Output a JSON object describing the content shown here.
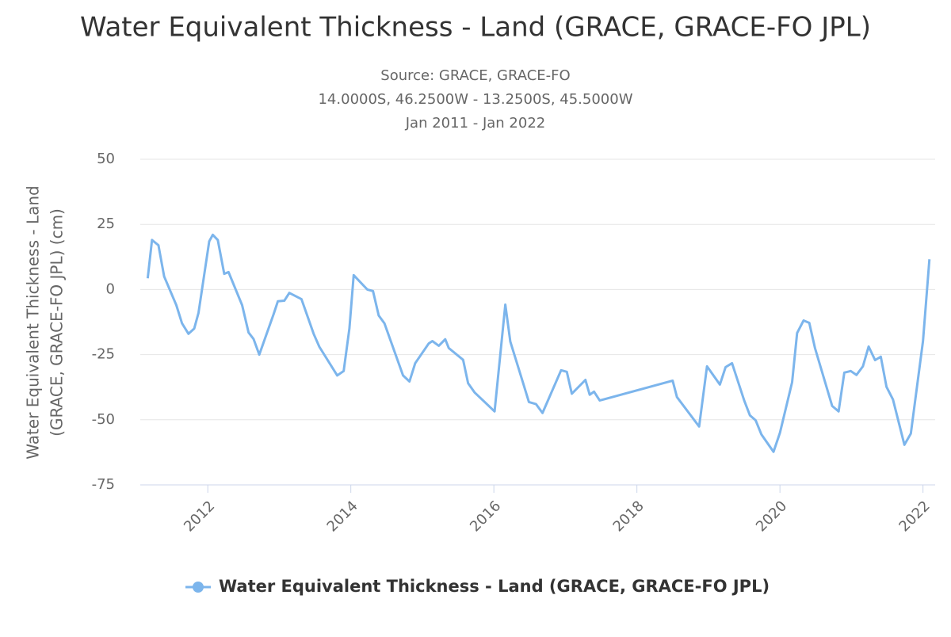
{
  "chart_data": {
    "type": "line",
    "title": "Water Equivalent Thickness - Land (GRACE, GRACE-FO JPL)",
    "subtitle": [
      "Source: GRACE, GRACE-FO",
      "14.0000S, 46.2500W - 13.2500S, 45.5000W",
      "Jan 2011 - Jan 2022"
    ],
    "y_label": [
      "Water Equivalent Thickness - Land",
      "(GRACE, GRACE-FO JPL) (cm)"
    ],
    "xlim": [
      2011.056,
      2022.17
    ],
    "xticks": [
      2012,
      2014,
      2016,
      2018,
      2020,
      2022
    ],
    "ylim": [
      -75,
      50
    ],
    "yticks": [
      -75,
      -50,
      -25,
      0,
      25,
      50
    ],
    "grid": true,
    "x": [
      2011.16,
      2011.22,
      2011.31,
      2011.39,
      2011.56,
      2011.64,
      2011.73,
      2011.81,
      2011.87,
      2012.02,
      2012.07,
      2012.14,
      2012.23,
      2012.29,
      2012.48,
      2012.57,
      2012.64,
      2012.72,
      2012.81,
      2012.92,
      2012.98,
      2013.07,
      2013.14,
      2013.31,
      2013.48,
      2013.56,
      2013.81,
      2013.9,
      2013.98,
      2014.04,
      2014.23,
      2014.31,
      2014.39,
      2014.47,
      2014.73,
      2014.82,
      2014.9,
      2015.09,
      2015.14,
      2015.23,
      2015.32,
      2015.37,
      2015.57,
      2015.64,
      2015.73,
      2016.01,
      2016.16,
      2016.23,
      2016.41,
      2016.49,
      2016.59,
      2016.68,
      2016.94,
      2017.02,
      2017.09,
      2017.28,
      2017.34,
      2017.4,
      2017.48,
      2018.5,
      2018.56,
      2018.87,
      2018.98,
      2019.16,
      2019.24,
      2019.33,
      2019.5,
      2019.58,
      2019.66,
      2019.74,
      2019.91,
      2020.0,
      2020.17,
      2020.24,
      2020.33,
      2020.41,
      2020.49,
      2020.73,
      2020.82,
      2020.9,
      2020.99,
      2021.07,
      2021.16,
      2021.24,
      2021.33,
      2021.41,
      2021.49,
      2021.58,
      2021.74,
      2021.83,
      2022.0,
      2022.09
    ],
    "series": [
      {
        "name": "Water Equivalent Thickness - Land (GRACE, GRACE-FO JPL)",
        "color": "#7cb5ec",
        "values": [
          4.3,
          19,
          17,
          5,
          -6,
          -13,
          -17,
          -15,
          -9,
          18.5,
          21,
          19,
          6,
          6.7,
          -6,
          -16.5,
          -19,
          -25,
          -18,
          -9.5,
          -4.5,
          -4.3,
          -1.3,
          -3.7,
          -17,
          -22,
          -33,
          -31.3,
          -15,
          5.5,
          0,
          -0.6,
          -10,
          -13,
          -33,
          -35.3,
          -28.3,
          -20.7,
          -19.8,
          -21.6,
          -19.1,
          -22.5,
          -27,
          -36,
          -39.5,
          -46.8,
          -5.8,
          -20,
          -36,
          -43.2,
          -44,
          -47.4,
          -31,
          -31.6,
          -40,
          -34.7,
          -40.4,
          -39.2,
          -42.6,
          -35,
          -41.3,
          -52.6,
          -29.5,
          -36.5,
          -29.8,
          -28.3,
          -42.6,
          -48.3,
          -50.2,
          -55.6,
          -62.3,
          -55,
          -35.6,
          -16.7,
          -11.9,
          -12.8,
          -22.5,
          -44.7,
          -46.8,
          -31.9,
          -31.3,
          -32.8,
          -29.5,
          -21.9,
          -27.1,
          -25.8,
          -37.4,
          -42.2,
          -59.6,
          -55.3,
          -19.8,
          11.6
        ]
      }
    ]
  }
}
